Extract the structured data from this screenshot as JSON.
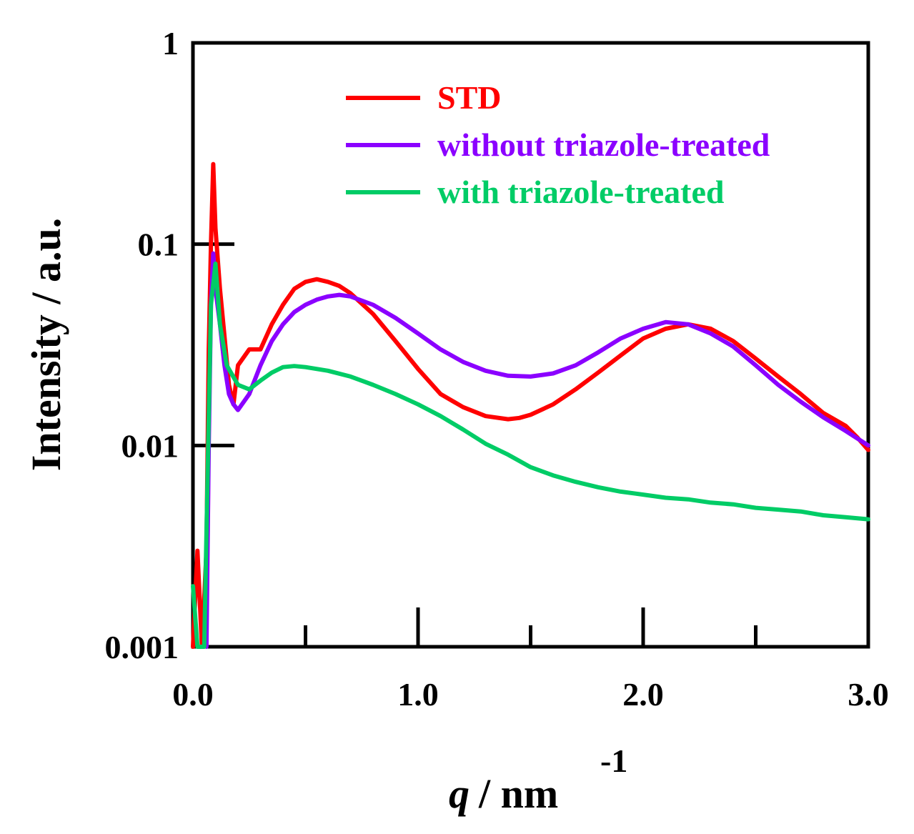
{
  "chart_data": {
    "type": "line",
    "title": "",
    "xlabel": {
      "symbol": "q",
      "unit": "/ nm",
      "exponent": "-1"
    },
    "ylabel": "Intensity  / a.u.",
    "xlim": [
      0.0,
      3.0
    ],
    "ylim": [
      0.001,
      1
    ],
    "yscale": "log",
    "x_ticks": [
      {
        "value": 0.0,
        "label": "0.0"
      },
      {
        "value": 1.0,
        "label": "1.0"
      },
      {
        "value": 2.0,
        "label": "2.0"
      },
      {
        "value": 3.0,
        "label": "3.0"
      }
    ],
    "x_minor_ticks": [
      0.5,
      1.5,
      2.5
    ],
    "y_ticks": [
      {
        "value": 0.001,
        "label": "0.001"
      },
      {
        "value": 0.01,
        "label": "0.01"
      },
      {
        "value": 0.1,
        "label": "0.1"
      },
      {
        "value": 1,
        "label": "1"
      }
    ],
    "legend_position": "top-right",
    "series": [
      {
        "name": "STD",
        "color": "#ff0000",
        "x": [
          0.0,
          0.02,
          0.04,
          0.06,
          0.07,
          0.08,
          0.09,
          0.1,
          0.12,
          0.14,
          0.16,
          0.18,
          0.2,
          0.25,
          0.3,
          0.35,
          0.4,
          0.45,
          0.5,
          0.55,
          0.6,
          0.65,
          0.7,
          0.8,
          0.9,
          1.0,
          1.1,
          1.2,
          1.3,
          1.4,
          1.45,
          1.5,
          1.6,
          1.7,
          1.8,
          1.9,
          2.0,
          2.1,
          2.2,
          2.3,
          2.4,
          2.5,
          2.6,
          2.7,
          2.8,
          2.9,
          2.95,
          3.0
        ],
        "y": [
          0.001,
          0.003,
          0.001,
          0.003,
          0.03,
          0.1,
          0.25,
          0.12,
          0.06,
          0.035,
          0.02,
          0.016,
          0.025,
          0.03,
          0.03,
          0.04,
          0.05,
          0.06,
          0.065,
          0.067,
          0.065,
          0.062,
          0.057,
          0.045,
          0.033,
          0.024,
          0.018,
          0.0155,
          0.014,
          0.0135,
          0.0137,
          0.0142,
          0.016,
          0.019,
          0.023,
          0.028,
          0.034,
          0.038,
          0.04,
          0.038,
          0.033,
          0.027,
          0.022,
          0.018,
          0.0145,
          0.0125,
          0.011,
          0.0095
        ]
      },
      {
        "name": "without triazole-treated",
        "color": "#8b00ff",
        "x": [
          0.06,
          0.07,
          0.08,
          0.09,
          0.1,
          0.12,
          0.14,
          0.16,
          0.18,
          0.2,
          0.25,
          0.3,
          0.35,
          0.4,
          0.45,
          0.5,
          0.55,
          0.6,
          0.65,
          0.7,
          0.8,
          0.9,
          1.0,
          1.1,
          1.2,
          1.3,
          1.4,
          1.5,
          1.6,
          1.7,
          1.8,
          1.9,
          2.0,
          2.1,
          2.2,
          2.3,
          2.4,
          2.5,
          2.6,
          2.7,
          2.8,
          2.9,
          3.0
        ],
        "y": [
          0.001,
          0.01,
          0.05,
          0.09,
          0.06,
          0.04,
          0.025,
          0.018,
          0.016,
          0.015,
          0.018,
          0.025,
          0.033,
          0.04,
          0.046,
          0.05,
          0.053,
          0.055,
          0.056,
          0.055,
          0.05,
          0.043,
          0.036,
          0.03,
          0.026,
          0.0235,
          0.0222,
          0.022,
          0.0228,
          0.025,
          0.029,
          0.034,
          0.038,
          0.041,
          0.04,
          0.036,
          0.031,
          0.025,
          0.02,
          0.0165,
          0.0138,
          0.0118,
          0.01
        ]
      },
      {
        "name": "with triazole-treated",
        "color": "#00cc66",
        "x": [
          0.0,
          0.02,
          0.05,
          0.08,
          0.1,
          0.12,
          0.15,
          0.2,
          0.25,
          0.3,
          0.35,
          0.4,
          0.45,
          0.5,
          0.6,
          0.7,
          0.8,
          0.9,
          1.0,
          1.1,
          1.2,
          1.3,
          1.4,
          1.5,
          1.6,
          1.7,
          1.8,
          1.9,
          2.0,
          2.1,
          2.2,
          2.3,
          2.4,
          2.5,
          2.6,
          2.7,
          2.8,
          2.9,
          3.0
        ],
        "y": [
          0.002,
          0.001,
          0.001,
          0.05,
          0.08,
          0.04,
          0.025,
          0.02,
          0.019,
          0.021,
          0.023,
          0.0245,
          0.0248,
          0.0245,
          0.0235,
          0.022,
          0.02,
          0.018,
          0.016,
          0.014,
          0.012,
          0.0102,
          0.009,
          0.0078,
          0.0071,
          0.0066,
          0.0062,
          0.0059,
          0.0057,
          0.0055,
          0.0054,
          0.0052,
          0.0051,
          0.0049,
          0.0048,
          0.0047,
          0.0045,
          0.0044,
          0.0043
        ]
      }
    ]
  }
}
